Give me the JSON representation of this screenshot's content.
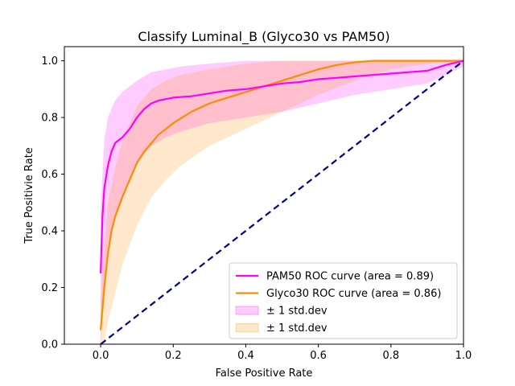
{
  "chart_data": {
    "type": "line",
    "title": "Classify Luminal_B (Glyco30 vs PAM50)",
    "xlabel": "False Positive Rate",
    "ylabel": "True Positivie Rate",
    "xlim": [
      -0.1,
      1.0
    ],
    "ylim": [
      0.0,
      1.05
    ],
    "xticks": [
      0.0,
      0.2,
      0.4,
      0.6,
      0.8,
      1.0
    ],
    "yticks": [
      0.0,
      0.2,
      0.4,
      0.6,
      0.8,
      1.0
    ],
    "xtick_labels": [
      "0.0",
      "0.2",
      "0.4",
      "0.6",
      "0.8",
      "1.0"
    ],
    "ytick_labels": [
      "0.0",
      "0.2",
      "0.4",
      "0.6",
      "0.8",
      "1.0"
    ],
    "grid": false,
    "legend_placement": "lower-right",
    "series": [
      {
        "name": "PAM50 ROC curve (area = 0.89)",
        "color": "#ff00ff",
        "style": "solid",
        "x": [
          0.0,
          0.005,
          0.01,
          0.02,
          0.03,
          0.04,
          0.05,
          0.06,
          0.08,
          0.1,
          0.12,
          0.14,
          0.16,
          0.18,
          0.2,
          0.25,
          0.3,
          0.35,
          0.4,
          0.45,
          0.5,
          0.55,
          0.6,
          0.65,
          0.7,
          0.75,
          0.8,
          0.85,
          0.9,
          0.95,
          1.0
        ],
        "y": [
          0.25,
          0.45,
          0.55,
          0.63,
          0.68,
          0.71,
          0.72,
          0.73,
          0.76,
          0.8,
          0.83,
          0.85,
          0.86,
          0.865,
          0.87,
          0.875,
          0.885,
          0.895,
          0.9,
          0.91,
          0.92,
          0.925,
          0.935,
          0.94,
          0.945,
          0.95,
          0.955,
          0.96,
          0.965,
          0.985,
          1.0
        ]
      },
      {
        "name": "Glyco30 ROC curve (area = 0.86)",
        "color": "#ff8c00",
        "style": "solid",
        "x": [
          0.0,
          0.01,
          0.02,
          0.03,
          0.04,
          0.06,
          0.08,
          0.1,
          0.12,
          0.14,
          0.16,
          0.18,
          0.2,
          0.25,
          0.3,
          0.35,
          0.4,
          0.45,
          0.5,
          0.55,
          0.6,
          0.65,
          0.7,
          0.75,
          0.8,
          0.85,
          0.9,
          0.95,
          1.0
        ],
        "y": [
          0.05,
          0.2,
          0.32,
          0.4,
          0.45,
          0.52,
          0.58,
          0.64,
          0.68,
          0.71,
          0.74,
          0.76,
          0.78,
          0.82,
          0.85,
          0.87,
          0.89,
          0.91,
          0.93,
          0.95,
          0.97,
          0.985,
          0.995,
          1.0,
          1.0,
          1.0,
          1.0,
          1.0,
          1.0
        ]
      },
      {
        "name": "",
        "color": "#000080",
        "style": "dashed",
        "x": [
          0.0,
          1.0
        ],
        "y": [
          0.0,
          1.0
        ]
      }
    ],
    "bands": [
      {
        "name": "± 1 std.dev",
        "color": "#ff00ff",
        "opacity": 0.2,
        "x": [
          0.0,
          0.01,
          0.02,
          0.04,
          0.06,
          0.08,
          0.1,
          0.14,
          0.18,
          0.22,
          0.3,
          0.4,
          0.5,
          0.6,
          0.7,
          0.8,
          0.9,
          1.0
        ],
        "upper": [
          0.48,
          0.72,
          0.8,
          0.86,
          0.89,
          0.91,
          0.93,
          0.96,
          0.97,
          0.98,
          0.99,
          1.0,
          1.0,
          1.0,
          1.0,
          1.0,
          1.0,
          1.0
        ],
        "lower": [
          0.0,
          0.22,
          0.35,
          0.45,
          0.52,
          0.58,
          0.64,
          0.7,
          0.73,
          0.75,
          0.78,
          0.8,
          0.82,
          0.85,
          0.88,
          0.9,
          0.92,
          0.98
        ]
      },
      {
        "name": "± 1 std.dev",
        "color": "#ff8c00",
        "opacity": 0.2,
        "x": [
          0.0,
          0.01,
          0.02,
          0.04,
          0.06,
          0.08,
          0.1,
          0.14,
          0.18,
          0.22,
          0.3,
          0.4,
          0.5,
          0.6,
          0.7,
          0.8,
          0.9,
          1.0
        ],
        "upper": [
          0.15,
          0.35,
          0.5,
          0.62,
          0.72,
          0.78,
          0.84,
          0.9,
          0.93,
          0.95,
          0.97,
          0.99,
          1.0,
          1.0,
          1.0,
          1.0,
          1.0,
          1.0
        ],
        "lower": [
          0.0,
          0.0,
          0.08,
          0.18,
          0.28,
          0.35,
          0.42,
          0.52,
          0.58,
          0.63,
          0.7,
          0.76,
          0.82,
          0.88,
          0.93,
          0.97,
          0.99,
          1.0
        ]
      }
    ],
    "legend": [
      {
        "label": "PAM50 ROC curve (area = 0.89)",
        "kind": "line",
        "color": "#ff00ff"
      },
      {
        "label": "Glyco30 ROC curve (area = 0.86)",
        "kind": "line",
        "color": "#ff8c00"
      },
      {
        "label": "± 1 std.dev",
        "kind": "patch",
        "color": "#ff00ff"
      },
      {
        "label": "± 1 std.dev",
        "kind": "patch",
        "color": "#ff8c00"
      }
    ]
  }
}
